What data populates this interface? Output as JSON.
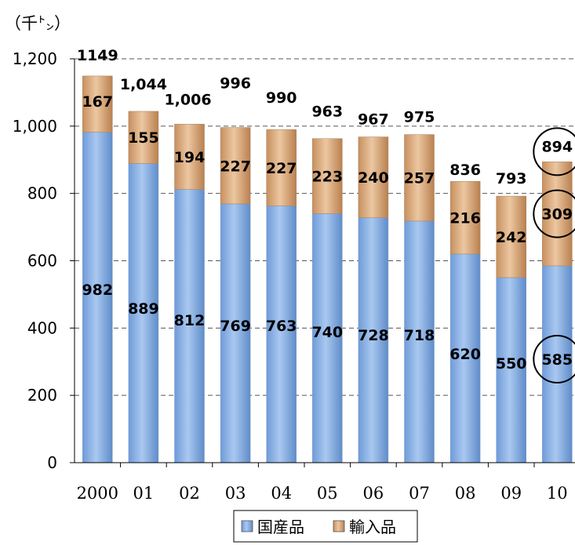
{
  "chart_data": {
    "type": "bar",
    "stacked": true,
    "unit_label": "（千㌧）",
    "categories": [
      "2000",
      "01",
      "02",
      "03",
      "04",
      "05",
      "06",
      "07",
      "08",
      "09",
      "10"
    ],
    "series": [
      {
        "name": "国産品",
        "values": [
          982,
          889,
          812,
          769,
          763,
          740,
          728,
          718,
          620,
          550,
          585
        ],
        "color": "#8db3e2"
      },
      {
        "name": "輸入品",
        "values": [
          167,
          155,
          194,
          227,
          227,
          223,
          240,
          257,
          216,
          242,
          309
        ],
        "color": "#d9a77a"
      }
    ],
    "total_labels": [
      "1149",
      "1,044",
      "1,006",
      "996",
      "990",
      "963",
      "967",
      "975",
      "836",
      "793",
      "894"
    ],
    "ylim": [
      0,
      1200
    ],
    "yticks": [
      0,
      200,
      400,
      600,
      800,
      1000,
      1200
    ],
    "ytick_labels": [
      "0",
      "200",
      "400",
      "600",
      "800",
      "1,000",
      "1,200"
    ],
    "grid": "dashed-horizontal",
    "legend": "bottom",
    "highlighted_category": "10"
  }
}
